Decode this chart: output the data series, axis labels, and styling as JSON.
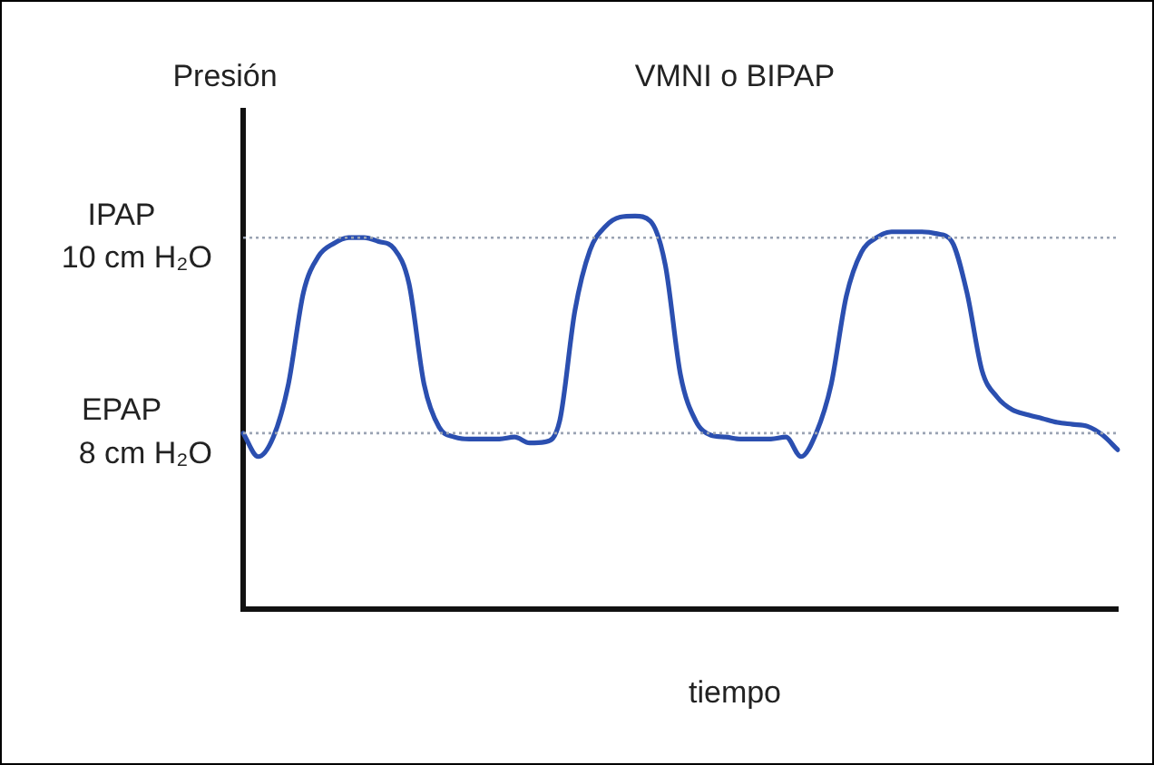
{
  "chart_data": {
    "type": "line",
    "title": "VMNI o BIPAP",
    "ylabel": "Presión",
    "xlabel": "tiempo",
    "categories": [
      null,
      null,
      null,
      null,
      null,
      null,
      null,
      null,
      null,
      null,
      null,
      null,
      null,
      null,
      null,
      null,
      null,
      null,
      null,
      null,
      null,
      null,
      null,
      null,
      null,
      null,
      null,
      null,
      null,
      null,
      null,
      null,
      null,
      null,
      null,
      null,
      null,
      null,
      null,
      null,
      null,
      null,
      null,
      null,
      null,
      null,
      null,
      null,
      null,
      null,
      null,
      null,
      null,
      null,
      null,
      null,
      null,
      null,
      null
    ],
    "series": [
      {
        "color": "#2b4fb0",
        "values": [
          8.0,
          7.76,
          7.96,
          8.5,
          9.44,
          9.81,
          9.94,
          10.0,
          10.0,
          9.96,
          9.89,
          9.53,
          8.5,
          8.06,
          7.96,
          7.94,
          7.94,
          7.94,
          7.96,
          7.9,
          7.91,
          8.13,
          9.25,
          9.87,
          10.11,
          10.21,
          10.22,
          10.17,
          9.72,
          8.6,
          8.13,
          7.98,
          7.96,
          7.94,
          7.94,
          7.94,
          7.96,
          7.76,
          8.0,
          8.5,
          9.4,
          9.85,
          10.0,
          10.06,
          10.06,
          10.06,
          10.04,
          9.96,
          9.44,
          8.64,
          8.37,
          8.24,
          8.19,
          8.15,
          8.11,
          8.09,
          8.07,
          7.98,
          7.83
        ]
      }
    ],
    "ylim": [
      6.2,
      11.3
    ],
    "yticks": [
      {
        "value": 10,
        "label": "10 cm H₂O"
      },
      {
        "value": 8,
        "label": "8 cm H₂O"
      }
    ],
    "tick_labels": "y",
    "legend": false,
    "marker": "none",
    "line_style": "solid",
    "ref_lines": [
      {
        "axis": "y",
        "value": 10,
        "label": "IPAP",
        "color": "#9aa3b3",
        "line_style": "dotted"
      },
      {
        "axis": "y",
        "value": 8,
        "label": "EPAP",
        "color": "#9aa3b3",
        "line_style": "dotted"
      }
    ]
  }
}
